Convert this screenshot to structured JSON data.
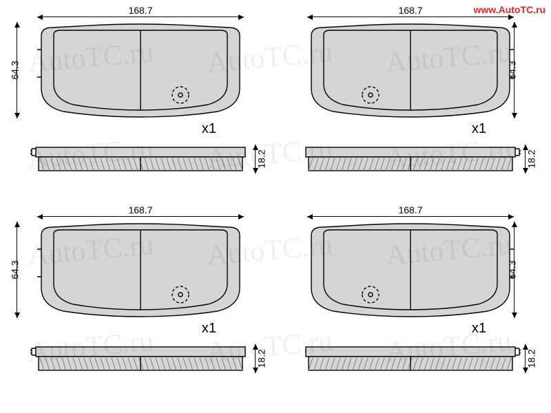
{
  "watermark": {
    "url": "www.AutoTC.ru",
    "text": "AutoTC.ru",
    "url_color": "#d92b2b",
    "opacity": 0.06
  },
  "colors": {
    "fill": "#d4d5d7",
    "stroke": "#000000",
    "hatch": "#7a7b7d",
    "background": "#ffffff"
  },
  "stroke_width": 1.4,
  "font_size_dim": 14,
  "font_size_qty": 20,
  "quadrants": [
    {
      "id": "tl",
      "pad": {
        "width_mm": 168.7,
        "height_mm": 64.3,
        "thickness_mm": 18.2,
        "clip_side": "left"
      },
      "qty": "x1",
      "mirror": false
    },
    {
      "id": "tr",
      "pad": {
        "width_mm": 168.7,
        "height_mm": 64.3,
        "thickness_mm": 18.2,
        "clip_side": "right"
      },
      "qty": "x1",
      "mirror": true
    },
    {
      "id": "bl",
      "pad": {
        "width_mm": 168.7,
        "height_mm": 64.3,
        "thickness_mm": 18.2,
        "clip_side": "left"
      },
      "qty": "x1",
      "mirror": false
    },
    {
      "id": "br",
      "pad": {
        "width_mm": 168.7,
        "height_mm": 64.3,
        "thickness_mm": 18.2,
        "clip_side": "right"
      },
      "qty": "x1",
      "mirror": true
    }
  ]
}
